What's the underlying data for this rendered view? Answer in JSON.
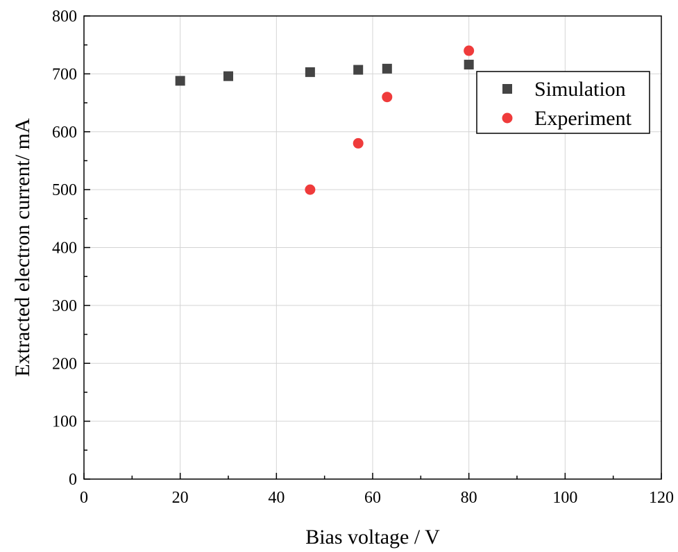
{
  "chart_data": {
    "type": "scatter",
    "title": "",
    "xlabel": "Bias voltage / V",
    "ylabel": "Extracted electron current/ mA",
    "xlim": [
      0,
      120
    ],
    "ylim": [
      0,
      800
    ],
    "xticks": [
      0,
      20,
      40,
      60,
      80,
      100,
      120
    ],
    "yticks": [
      0,
      100,
      200,
      300,
      400,
      500,
      600,
      700,
      800
    ],
    "grid": true,
    "legend_position": "top-right",
    "series": [
      {
        "name": "Simulation",
        "marker": "square",
        "color": "#444444",
        "x": [
          20,
          30,
          47,
          57,
          63,
          80
        ],
        "y": [
          688,
          696,
          703,
          707,
          709,
          716
        ]
      },
      {
        "name": "Experiment",
        "marker": "circle",
        "color": "#ef3b3b",
        "x": [
          47,
          57,
          63,
          80
        ],
        "y": [
          500,
          580,
          660,
          740
        ]
      }
    ]
  }
}
